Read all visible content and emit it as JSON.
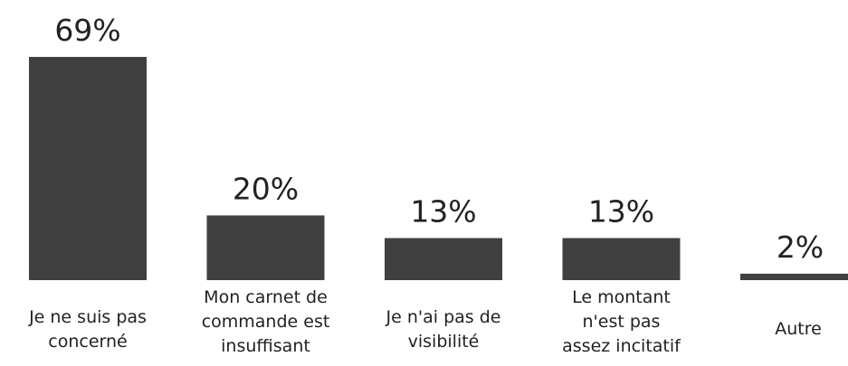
{
  "chart_data": {
    "type": "bar",
    "categories": [
      "Je ne suis pas\nconcerné",
      "Mon carnet de\ncommande est\ninsuffisant",
      "Je n'ai pas de\nvisibilité",
      "Le montant\nn'est pas\nassez incitatif",
      "Autre"
    ],
    "values": [
      69,
      20,
      13,
      13,
      2
    ],
    "value_labels": [
      "69%",
      "20%",
      "13%",
      "13%",
      "2%"
    ],
    "color": "#404040"
  }
}
